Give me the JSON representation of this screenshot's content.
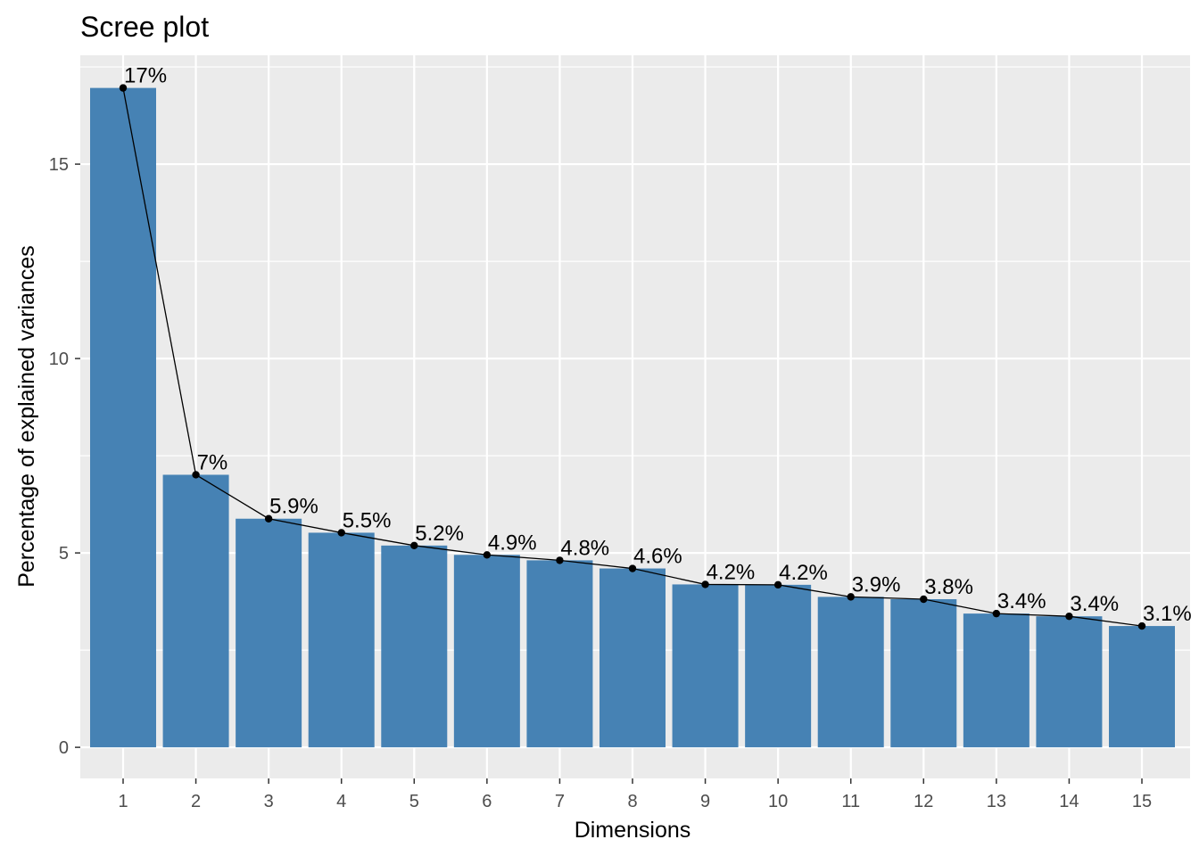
{
  "chart_data": {
    "type": "bar",
    "title": "Scree plot",
    "xlabel": "Dimensions",
    "ylabel": "Percentage of explained variances",
    "categories": [
      "1",
      "2",
      "3",
      "4",
      "5",
      "6",
      "7",
      "8",
      "9",
      "10",
      "11",
      "12",
      "13",
      "14",
      "15"
    ],
    "values": [
      16.96,
      7.01,
      5.88,
      5.52,
      5.19,
      4.95,
      4.81,
      4.6,
      4.19,
      4.18,
      3.87,
      3.81,
      3.44,
      3.37,
      3.12
    ],
    "data_labels": [
      "17%",
      "7%",
      "5.9%",
      "5.5%",
      "5.2%",
      "4.9%",
      "4.8%",
      "4.6%",
      "4.2%",
      "4.2%",
      "3.9%",
      "3.8%",
      "3.4%",
      "3.4%",
      "3.1%"
    ],
    "ylim": [
      -0.8,
      17.8
    ],
    "yticks": [
      0,
      5,
      10,
      15
    ],
    "grid": true,
    "overlay_line": true,
    "colors": {
      "bar": "#4682b4",
      "panel": "#ebebeb",
      "grid": "#ffffff",
      "line": "#000000",
      "tick_text": "#4d4d4d"
    }
  }
}
